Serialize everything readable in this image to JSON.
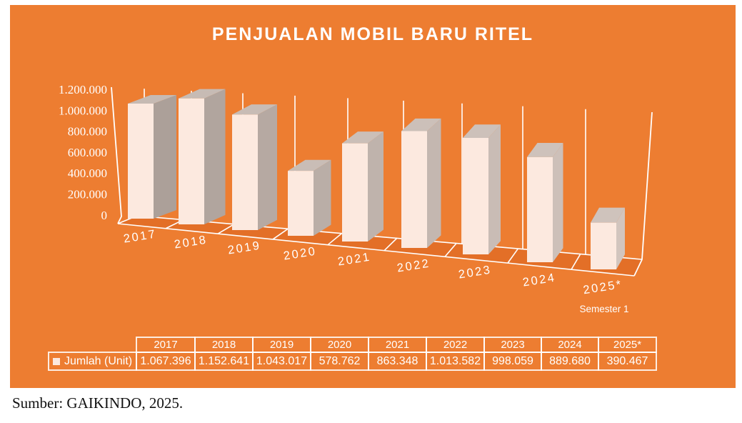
{
  "panel": {
    "title": "PENJUALAN MOBIL BARU RITEL",
    "background_color": "#ED7D31"
  },
  "chart_data": {
    "type": "bar",
    "projection": "3d",
    "title": "PENJUALAN MOBIL BARU RITEL",
    "categories": [
      "2017",
      "2018",
      "2019",
      "2020",
      "2021",
      "2022",
      "2023",
      "2024",
      "2025*"
    ],
    "series": [
      {
        "name": "Jumlah (Unit)",
        "values": [
          1067396,
          1152641,
          1043017,
          578762,
          863348,
          1013582,
          998059,
          889680,
          390467
        ]
      }
    ],
    "value_labels": [
      "1.067.396",
      "1.152.641",
      "1.043.017",
      "578.762",
      "863.348",
      "1.013.582",
      "998.059",
      "889.680",
      "390.467"
    ],
    "xlabel": "",
    "ylabel": "",
    "ylim": [
      0,
      1200000
    ],
    "y_ticks": {
      "values": [
        0,
        200000,
        400000,
        600000,
        800000,
        1000000,
        1200000
      ],
      "labels": [
        "0",
        "200.000",
        "400.000",
        "600.000",
        "800.000",
        "1.000.000",
        "1.200.000"
      ]
    },
    "x_note": {
      "category": "2025*",
      "label": "Semester 1"
    },
    "grid": "vertical-wall-lines",
    "legend_position": "table-bottom",
    "colors": {
      "background": "#ED7D31",
      "bar_front": "#FCE9DF",
      "bar_side_left": "#ACA099",
      "bar_side_right": "#D2C5BE",
      "bar_top_left": "#C6BAB3",
      "bar_top_right": "#CFC3BC",
      "floor": "#E36F27",
      "axis_lines": "#FFFFFF",
      "text": "#FFFFFF"
    }
  },
  "table": {
    "row_label": "Jumlah (Unit)",
    "legend_marker_color": "#FCE9DF",
    "columns": [
      "2017",
      "2018",
      "2019",
      "2020",
      "2021",
      "2022",
      "2023",
      "2024",
      "2025*"
    ],
    "values": [
      "1.067.396",
      "1.152.641",
      "1.043.017",
      "578.762",
      "863.348",
      "1.013.582",
      "998.059",
      "889.680",
      "390.467"
    ]
  },
  "source_note": "Sumber: GAIKINDO, 2025."
}
